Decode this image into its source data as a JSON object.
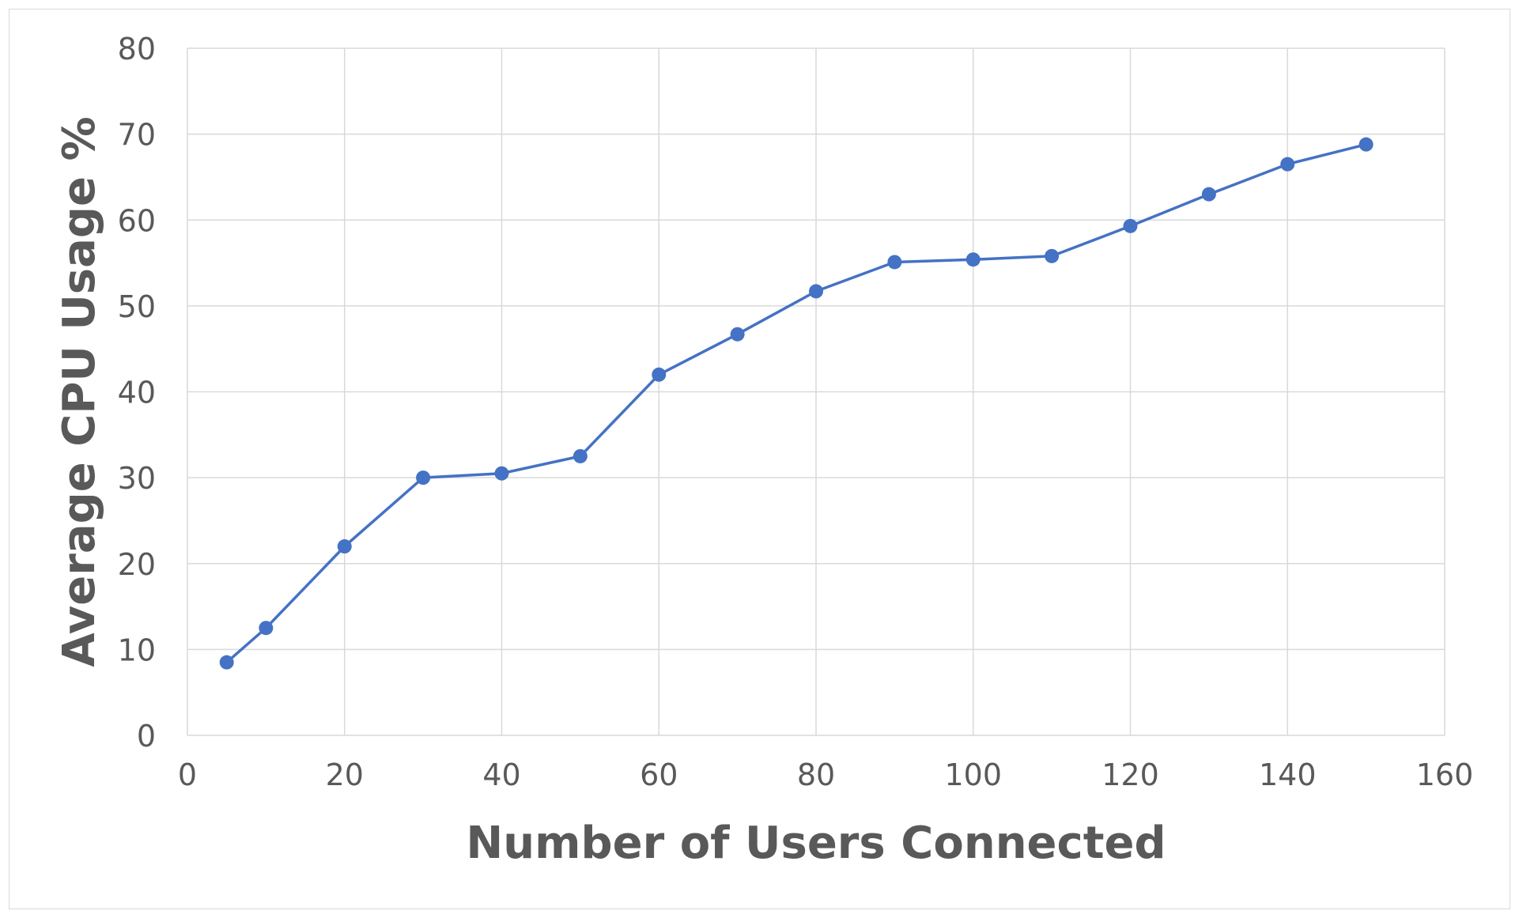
{
  "chart_data": {
    "type": "line",
    "title": "",
    "xlabel": "Number of Users Connected",
    "ylabel": "Average CPU Usage %",
    "xlim": [
      0,
      160
    ],
    "ylim": [
      0,
      80
    ],
    "xticks": [
      0,
      20,
      40,
      60,
      80,
      100,
      120,
      140,
      160
    ],
    "yticks": [
      0,
      10,
      20,
      30,
      40,
      50,
      60,
      70,
      80
    ],
    "grid": true,
    "legend": "none",
    "series": [
      {
        "color": "#4472c4",
        "marker": "circle",
        "x": [
          5,
          10,
          20,
          30,
          40,
          50,
          60,
          70,
          80,
          90,
          100,
          110,
          120,
          130,
          140,
          150
        ],
        "y": [
          8.5,
          12.5,
          22,
          30,
          30.5,
          32.5,
          42,
          46.7,
          51.7,
          55.1,
          55.4,
          55.8,
          59.3,
          63,
          66.5,
          68.8
        ]
      }
    ]
  }
}
